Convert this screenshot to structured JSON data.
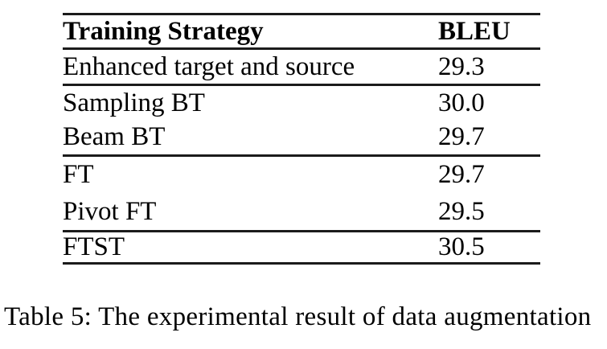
{
  "table": {
    "header": {
      "strategy": "Training Strategy",
      "bleu": "BLEU"
    },
    "rows": [
      {
        "strategy": "Enhanced target and source",
        "bleu": "29.3"
      },
      {
        "strategy": "Sampling BT",
        "bleu": "30.0"
      },
      {
        "strategy": "Beam BT",
        "bleu": "29.7"
      },
      {
        "strategy": "FT",
        "bleu": "29.7"
      },
      {
        "strategy": "Pivot FT",
        "bleu": "29.5"
      },
      {
        "strategy": "FTST",
        "bleu": "30.5"
      }
    ],
    "row_groups": [
      [
        0
      ],
      [
        1,
        2
      ],
      [
        3,
        4
      ],
      [
        5
      ]
    ]
  },
  "caption": "Table 5: The experimental result of data augmentation",
  "colors": {
    "text": "#000000",
    "rule": "#1b1b1b",
    "background": "#ffffff"
  }
}
